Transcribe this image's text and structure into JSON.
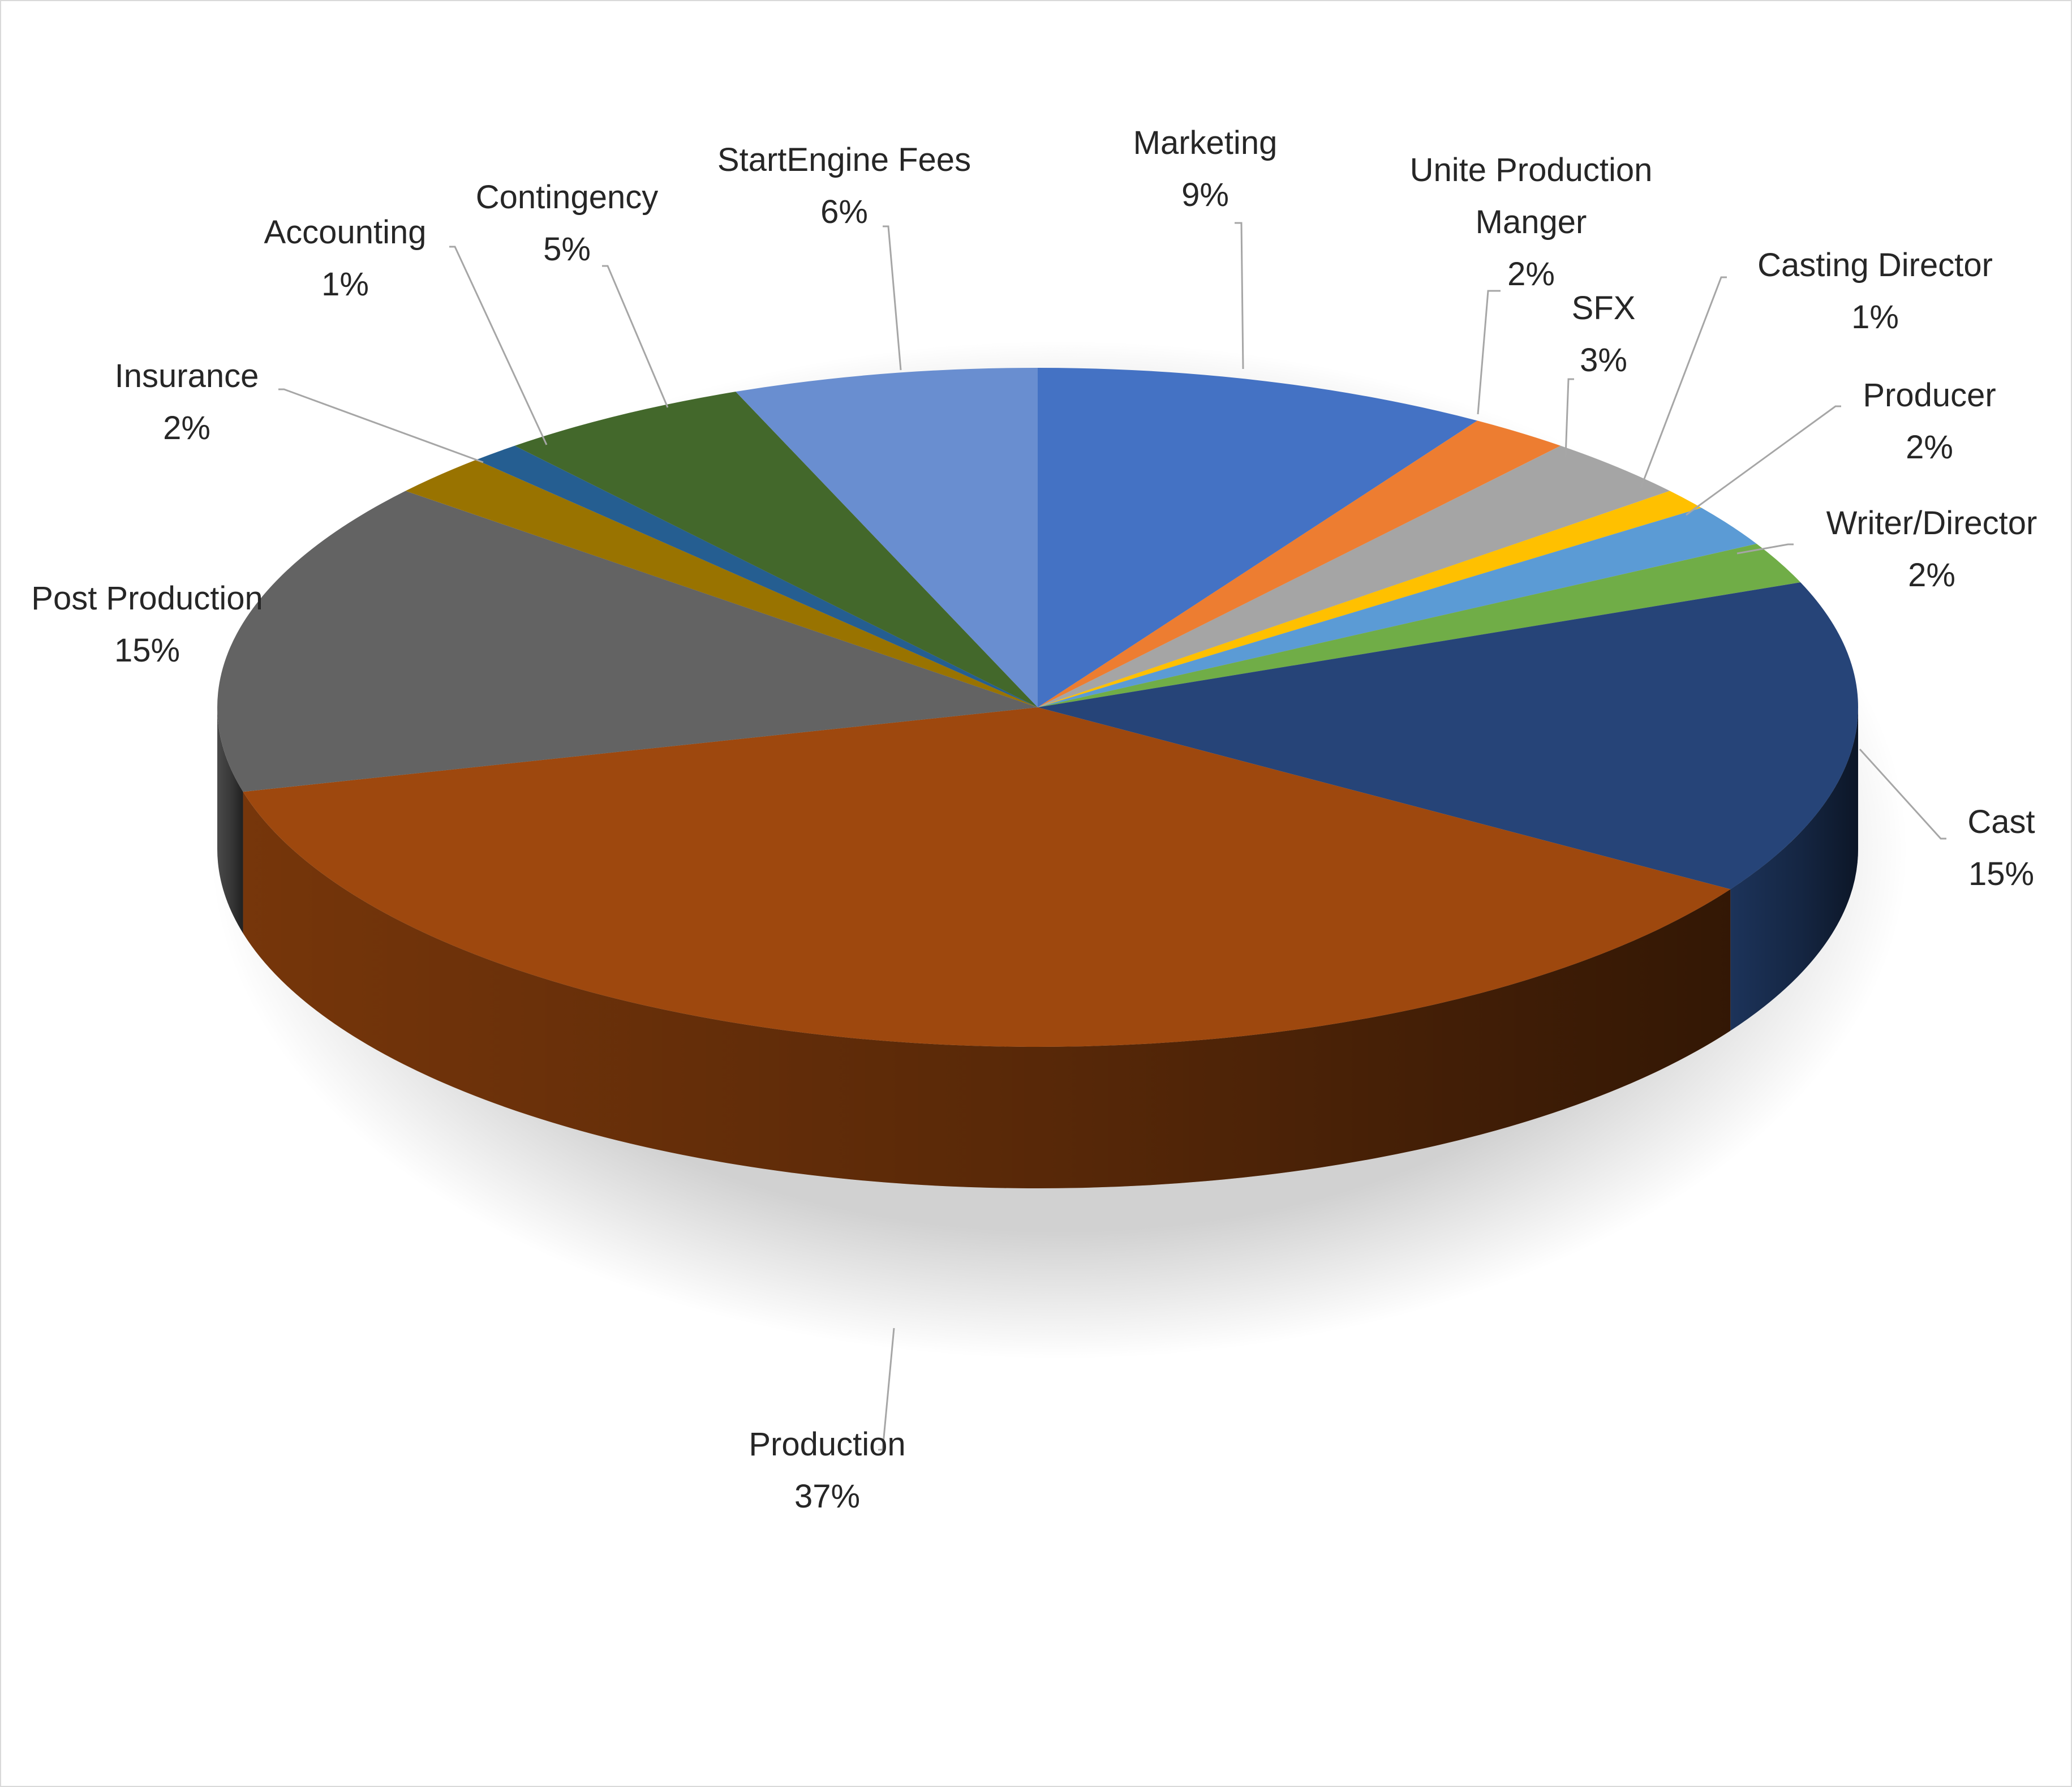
{
  "chart_data": {
    "type": "pie",
    "style": "3d",
    "labels_show": [
      "category-name",
      "percentage"
    ],
    "slices": [
      {
        "label": "Marketing",
        "label_lines": [
          "Marketing"
        ],
        "value": 9,
        "pct_text": "9%",
        "color": "#4472C4"
      },
      {
        "label": "Unite Production Manger",
        "label_lines": [
          "Unite Production",
          "Manger"
        ],
        "value": 2,
        "pct_text": "2%",
        "color": "#ED7D31"
      },
      {
        "label": "SFX",
        "label_lines": [
          "SFX"
        ],
        "value": 3,
        "pct_text": "3%",
        "color": "#A5A5A5"
      },
      {
        "label": "Casting Director",
        "label_lines": [
          "Casting Director"
        ],
        "value": 1,
        "pct_text": "1%",
        "color": "#FFC000"
      },
      {
        "label": "Producer",
        "label_lines": [
          "Producer"
        ],
        "value": 2,
        "pct_text": "2%",
        "color": "#5B9BD5"
      },
      {
        "label": "Writer/Director",
        "label_lines": [
          "Writer/Director"
        ],
        "value": 2,
        "pct_text": "2%",
        "color": "#70AD47"
      },
      {
        "label": "Cast",
        "label_lines": [
          "Cast"
        ],
        "value": 15,
        "pct_text": "15%",
        "color": "#264478"
      },
      {
        "label": "Production",
        "label_lines": [
          "Production"
        ],
        "value": 37,
        "pct_text": "37%",
        "color": "#9E480E"
      },
      {
        "label": "Post Production",
        "label_lines": [
          "Post Production"
        ],
        "value": 15,
        "pct_text": "15%",
        "color": "#636363"
      },
      {
        "label": "Insurance",
        "label_lines": [
          "Insurance"
        ],
        "value": 2,
        "pct_text": "2%",
        "color": "#997300"
      },
      {
        "label": "Accounting",
        "label_lines": [
          "Accounting"
        ],
        "value": 1,
        "pct_text": "1%",
        "color": "#255E91"
      },
      {
        "label": "Contingency",
        "label_lines": [
          "Contingency"
        ],
        "value": 5,
        "pct_text": "5%",
        "color": "#43682B"
      },
      {
        "label": "StartEngine Fees",
        "label_lines": [
          "StartEngine Fees"
        ],
        "value": 6,
        "pct_text": "6%",
        "color": "#698ED0"
      }
    ]
  }
}
